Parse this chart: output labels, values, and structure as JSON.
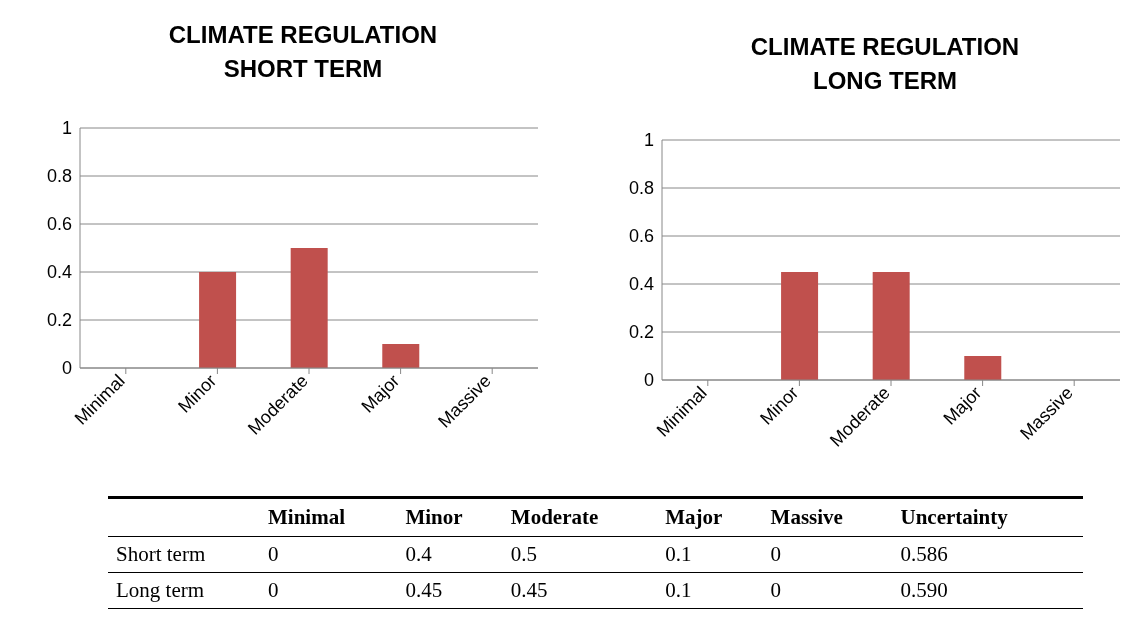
{
  "chart_data": [
    {
      "type": "bar",
      "title": "CLIMATE REGULATION",
      "subtitle": "SHORT TERM",
      "categories": [
        "Minimal",
        "Minor",
        "Moderate",
        "Major",
        "Massive"
      ],
      "values": [
        0,
        0.4,
        0.5,
        0.1,
        0
      ],
      "color": "#c0504d",
      "ylim": [
        0,
        1
      ],
      "yticks": [
        0,
        0.2,
        0.4,
        0.6,
        0.8,
        1
      ],
      "grid": "y"
    },
    {
      "type": "bar",
      "title": "CLIMATE REGULATION",
      "subtitle": "LONG TERM",
      "categories": [
        "Minimal",
        "Minor",
        "Moderate",
        "Major",
        "Massive"
      ],
      "values": [
        0,
        0.45,
        0.45,
        0.1,
        0
      ],
      "color": "#c0504d",
      "ylim": [
        0,
        1
      ],
      "yticks": [
        0,
        0.2,
        0.4,
        0.6,
        0.8,
        1
      ],
      "grid": "y"
    },
    {
      "type": "other",
      "data_labels": true,
      "categories": [
        "Minimal",
        "Minor",
        "Moderate",
        "Major",
        "Massive",
        "Uncertainty"
      ],
      "series": [
        {
          "name": "Short term",
          "values": [
            0,
            0.4,
            0.5,
            0.1,
            0,
            0.586
          ]
        },
        {
          "name": "Long term",
          "values": [
            0,
            0.45,
            0.45,
            0.1,
            0,
            0.59
          ],
          "value_labels": [
            "0",
            "0.45",
            "0.45",
            "0.1",
            "0",
            "0.590"
          ]
        }
      ]
    }
  ]
}
